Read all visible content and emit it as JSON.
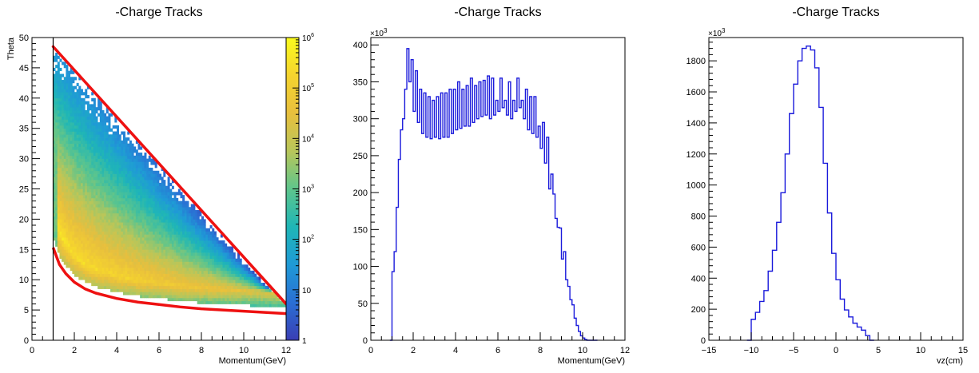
{
  "chart_data": [
    {
      "type": "heatmap",
      "title": "-Charge Tracks",
      "xlabel": "Momentum(GeV)",
      "ylabel": "Theta",
      "xlim": [
        0,
        12
      ],
      "ylim": [
        0,
        50
      ],
      "x_ticks": [
        "0",
        "2",
        "4",
        "6",
        "8",
        "10",
        "12"
      ],
      "y_ticks": [
        "0",
        "5",
        "10",
        "15",
        "20",
        "25",
        "30",
        "35",
        "40",
        "45",
        "50"
      ],
      "colorbar": {
        "scale": "log",
        "range": [
          1,
          1000000
        ],
        "tick_labels": [
          {
            "base": "1",
            "exp": ""
          },
          {
            "base": "10",
            "exp": ""
          },
          {
            "base": "10",
            "exp": "2"
          },
          {
            "base": "10",
            "exp": "3"
          },
          {
            "base": "10",
            "exp": "4"
          },
          {
            "base": "10",
            "exp": "5"
          },
          {
            "base": "10",
            "exp": "6"
          }
        ],
        "colors": [
          "#3a3eb4",
          "#2a6fd4",
          "#1f9ad6",
          "#1fb6b6",
          "#5ec58c",
          "#b8c65a",
          "#e8bf3d",
          "#f5d42e",
          "#fafb1e"
        ]
      },
      "cut_lines": {
        "color": "#ee1111",
        "upper_line": {
          "x": [
            1.0,
            12.0
          ],
          "y": [
            48.5,
            6.0
          ]
        },
        "lower_curve": {
          "x": [
            1.0,
            1.3,
            1.6,
            2.0,
            2.5,
            3.0,
            4.0,
            5.0,
            6.0,
            7.0,
            8.0,
            9.0,
            10.0,
            11.0,
            12.0
          ],
          "y": [
            15.3,
            12.5,
            11.0,
            9.6,
            8.5,
            7.8,
            6.9,
            6.3,
            5.9,
            5.5,
            5.2,
            5.0,
            4.8,
            4.6,
            4.4
          ]
        },
        "vertical_line_x": 1.0
      }
    },
    {
      "type": "line",
      "step": true,
      "title": "-Charge Tracks",
      "xlabel": "Momentum(GeV)",
      "ylabel": "",
      "multiplier": {
        "base": "×10",
        "exp": "3"
      },
      "xlim": [
        0,
        12
      ],
      "ylim": [
        0,
        410
      ],
      "x_ticks": [
        "0",
        "2",
        "4",
        "6",
        "8",
        "10",
        "12"
      ],
      "y_ticks": [
        "0",
        "50",
        "100",
        "150",
        "200",
        "250",
        "300",
        "350",
        "400"
      ],
      "color": "#1a1adb",
      "x": [
        0.9,
        1.0,
        1.1,
        1.2,
        1.3,
        1.4,
        1.5,
        1.6,
        1.7,
        1.8,
        1.9,
        2.0,
        2.1,
        2.2,
        2.3,
        2.4,
        2.5,
        2.6,
        2.7,
        2.8,
        2.9,
        3.0,
        3.1,
        3.2,
        3.3,
        3.4,
        3.5,
        3.6,
        3.7,
        3.8,
        3.9,
        4.0,
        4.1,
        4.2,
        4.3,
        4.4,
        4.5,
        4.6,
        4.7,
        4.8,
        4.9,
        5.0,
        5.1,
        5.2,
        5.3,
        5.4,
        5.5,
        5.6,
        5.7,
        5.8,
        5.9,
        6.0,
        6.1,
        6.2,
        6.3,
        6.4,
        6.5,
        6.6,
        6.7,
        6.8,
        6.9,
        7.0,
        7.1,
        7.2,
        7.3,
        7.4,
        7.5,
        7.6,
        7.7,
        7.8,
        7.9,
        8.0,
        8.1,
        8.2,
        8.3,
        8.4,
        8.5,
        8.6,
        8.7,
        8.8,
        8.9,
        9.0,
        9.1,
        9.2,
        9.3,
        9.4,
        9.5,
        9.6,
        9.7,
        9.8,
        9.9,
        10.0,
        10.1,
        10.2,
        10.3,
        10.4,
        10.5,
        10.6
      ],
      "values": [
        0,
        93,
        120,
        180,
        245,
        285,
        300,
        340,
        395,
        350,
        380,
        310,
        365,
        295,
        340,
        280,
        335,
        275,
        330,
        273,
        325,
        275,
        330,
        273,
        335,
        275,
        335,
        275,
        340,
        280,
        340,
        285,
        350,
        287,
        340,
        290,
        345,
        290,
        355,
        295,
        345,
        300,
        350,
        303,
        352,
        305,
        358,
        300,
        355,
        305,
        325,
        310,
        355,
        315,
        325,
        305,
        350,
        300,
        325,
        310,
        355,
        315,
        325,
        300,
        340,
        285,
        330,
        280,
        330,
        275,
        290,
        260,
        295,
        240,
        275,
        205,
        225,
        198,
        165,
        153,
        152,
        110,
        120,
        82,
        73,
        55,
        48,
        30,
        20,
        12,
        6,
        3,
        1,
        0,
        0,
        0,
        0,
        0
      ]
    },
    {
      "type": "line",
      "step": true,
      "title": "-Charge Tracks",
      "xlabel": "vz(cm)",
      "ylabel": "",
      "multiplier": {
        "base": "×10",
        "exp": "3"
      },
      "xlim": [
        -15,
        15
      ],
      "ylim": [
        0,
        1950
      ],
      "x_ticks": [
        "−15",
        "−10",
        "−5",
        "0",
        "5",
        "10",
        "15"
      ],
      "y_ticks": [
        "0",
        "200",
        "400",
        "600",
        "800",
        "1000",
        "1200",
        "1400",
        "1600",
        "1800"
      ],
      "color": "#1a1adb",
      "x": [
        -10.5,
        -10.0,
        -9.5,
        -9.0,
        -8.5,
        -8.0,
        -7.5,
        -7.0,
        -6.5,
        -6.0,
        -5.5,
        -5.0,
        -4.5,
        -4.0,
        -3.5,
        -3.0,
        -2.5,
        -2.0,
        -1.5,
        -1.0,
        -0.5,
        0.0,
        0.5,
        1.0,
        1.5,
        2.0,
        2.5,
        3.0,
        3.5,
        4.0
      ],
      "values": [
        0,
        135,
        180,
        250,
        320,
        445,
        580,
        760,
        950,
        1200,
        1460,
        1650,
        1800,
        1880,
        1895,
        1870,
        1755,
        1500,
        1140,
        820,
        560,
        390,
        265,
        195,
        150,
        110,
        85,
        65,
        30,
        0
      ]
    }
  ]
}
